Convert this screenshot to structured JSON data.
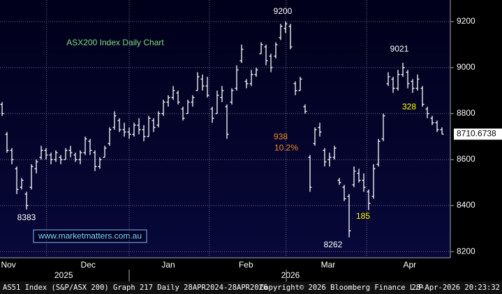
{
  "chart_data": {
    "type": "ohlc",
    "title": "ASX200 Index Daily Chart",
    "color": "#ffffff",
    "open": [
      8840,
      8710,
      8640,
      8560,
      8480,
      8450,
      8480,
      8560,
      8610,
      8640,
      8620,
      8600,
      8610,
      8600,
      8640,
      8620,
      8600,
      8630,
      8680,
      8630,
      8570,
      8610,
      8670,
      8740,
      8770,
      8730,
      8720,
      8710,
      8750,
      8730,
      8700,
      8770,
      8750,
      8800,
      8850,
      8870,
      8890,
      8820,
      8800,
      8850,
      8900,
      8950,
      8920,
      8820,
      8800,
      8870,
      8830,
      8850,
      8910,
      9030,
      8940,
      8930,
      8970,
      9060,
      9090,
      9050,
      9050,
      9130,
      9170,
      9180,
      8930,
      8900,
      8830,
      8610,
      8670,
      8740,
      8640,
      8600,
      8610,
      8510,
      8480,
      8440,
      8490,
      8540,
      8510,
      8460,
      8440,
      8580,
      8690,
      8930,
      8950,
      8910,
      8970,
      8980,
      8940,
      8910,
      8910,
      8820,
      8780,
      8760,
      8730
    ],
    "high": [
      8850,
      8720,
      8650,
      8570,
      8520,
      8460,
      8580,
      8600,
      8660,
      8650,
      8630,
      8640,
      8620,
      8650,
      8660,
      8630,
      8640,
      8700,
      8690,
      8640,
      8610,
      8660,
      8740,
      8810,
      8780,
      8760,
      8740,
      8760,
      8780,
      8750,
      8790,
      8780,
      8810,
      8860,
      8880,
      8920,
      8900,
      8830,
      8860,
      8880,
      8980,
      8970,
      8960,
      8830,
      8900,
      8920,
      8840,
      8910,
      9010,
      9100,
      8950,
      8990,
      9000,
      9110,
      9100,
      9060,
      9110,
      9190,
      9200,
      9190,
      8940,
      8960,
      8840,
      8620,
      8740,
      8760,
      8650,
      8630,
      8660,
      8520,
      8490,
      8450,
      8570,
      8560,
      8540,
      8470,
      8580,
      8690,
      8800,
      8980,
      8960,
      8990,
      9021,
      8990,
      8950,
      8970,
      8920,
      8830,
      8790,
      8770,
      8740
    ],
    "low": [
      8790,
      8630,
      8580,
      8450,
      8470,
      8383,
      8470,
      8540,
      8600,
      8600,
      8580,
      8590,
      8580,
      8600,
      8610,
      8590,
      8580,
      8620,
      8620,
      8550,
      8560,
      8610,
      8660,
      8730,
      8720,
      8700,
      8690,
      8700,
      8710,
      8680,
      8700,
      8720,
      8740,
      8790,
      8830,
      8860,
      8840,
      8770,
      8800,
      8830,
      8900,
      8900,
      8870,
      8760,
      8800,
      8850,
      8690,
      8840,
      8900,
      9020,
      8910,
      8920,
      8960,
      9060,
      9010,
      8980,
      9040,
      9120,
      9150,
      9080,
      8880,
      8900,
      8800,
      8460,
      8660,
      8700,
      8570,
      8570,
      8600,
      8490,
      8420,
      8262,
      8480,
      8500,
      8460,
      8380,
      8430,
      8570,
      8680,
      8920,
      8890,
      8900,
      8960,
      8910,
      8890,
      8900,
      8830,
      8780,
      8750,
      8720,
      8710
    ],
    "close": [
      8800,
      8640,
      8600,
      8470,
      8510,
      8400,
      8570,
      8590,
      8640,
      8620,
      8600,
      8630,
      8600,
      8640,
      8630,
      8600,
      8630,
      8690,
      8640,
      8570,
      8600,
      8650,
      8730,
      8790,
      8730,
      8720,
      8710,
      8750,
      8730,
      8700,
      8780,
      8740,
      8800,
      8850,
      8870,
      8900,
      8850,
      8780,
      8850,
      8870,
      8960,
      8920,
      8880,
      8780,
      8880,
      8900,
      8710,
      8900,
      8990,
      9080,
      8930,
      8970,
      8990,
      9100,
      9030,
      9000,
      9100,
      9180,
      9190,
      9090,
      8900,
      8950,
      8810,
      8480,
      8730,
      8720,
      8590,
      8610,
      8650,
      8500,
      8430,
      8290,
      8550,
      8510,
      8480,
      8410,
      8560,
      8680,
      8790,
      8960,
      8910,
      8970,
      9000,
      8930,
      8910,
      8950,
      8840,
      8800,
      8760,
      8730,
      8710.6738
    ],
    "xlim": [
      -0.43,
      91.71
    ],
    "xticks": [
      {
        "value": 1.3,
        "label": "Nov"
      },
      {
        "value": 17.6,
        "label": "Dec"
      },
      {
        "value": 34,
        "label": "Jan"
      },
      {
        "value": 49.9,
        "label": "Feb"
      },
      {
        "value": 66.7,
        "label": "Mar"
      },
      {
        "value": 83.4,
        "label": "Apr"
      }
    ],
    "years": [
      {
        "value": 12.6,
        "label": "2025"
      },
      {
        "value": 59,
        "label": "2026"
      }
    ],
    "xgrid": [
      9.1,
      26,
      42.4,
      58.1,
      74.6
    ],
    "ylim": [
      8173,
      9294
    ],
    "yticks": [
      8200,
      8400,
      8600,
      8800,
      9000,
      9200
    ],
    "grid": true,
    "annotations": [
      {
        "text": "9200",
        "color": "#ffffff"
      },
      {
        "text": "9021",
        "color": "#ffffff"
      },
      {
        "text": "8383",
        "color": "#ffffff"
      },
      {
        "text": "8262",
        "color": "#ffffff"
      },
      {
        "text": "185",
        "color": "#ffff00"
      },
      {
        "text": "328",
        "color": "#ffff00"
      },
      {
        "text": "938",
        "color": "#f08a24"
      },
      {
        "text": "10.2%",
        "color": "#f08a24"
      }
    ],
    "watermark": "www.marketmatters.com.au",
    "footer": [
      "AS51 Index (S&P/ASX 200) Graph 217 Daily 28APR2024-28APR2026",
      "Copyright© 2026 Bloomberg Finance L.P.",
      "28-Apr-2026 20:23:32"
    ]
  }
}
